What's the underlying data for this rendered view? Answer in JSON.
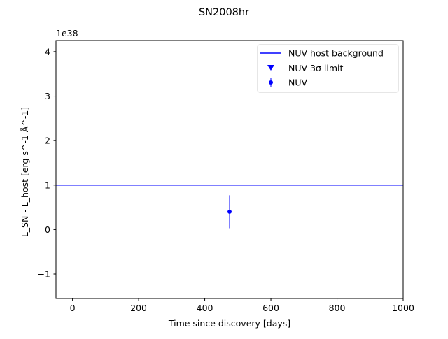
{
  "chart_data": {
    "type": "scatter",
    "title": "SN2008hr",
    "xlabel": "Time since discovery [days]",
    "ylabel": "L_SN - L_host [erg s^-1 Å^-1]",
    "y_offset_label": "1e38",
    "xlim": [
      -50,
      1000
    ],
    "ylim": [
      -1.55,
      4.25
    ],
    "xticks": [
      0,
      200,
      400,
      600,
      800,
      1000
    ],
    "xtick_labels": [
      "0",
      "200",
      "400",
      "600",
      "800",
      "1000"
    ],
    "yticks": [
      -1,
      0,
      1,
      2,
      3,
      4
    ],
    "ytick_labels": [
      "−1",
      "0",
      "1",
      "2",
      "3",
      "4"
    ],
    "grid": false,
    "legend_placement": "upper right",
    "series": [
      {
        "name": "NUV host background",
        "kind": "hline",
        "y": 1.0,
        "color": "#0000ff"
      },
      {
        "name": "NUV 3σ limit",
        "kind": "upper_limit",
        "points": [],
        "color": "#0000ff"
      },
      {
        "name": "NUV",
        "kind": "errorbar",
        "points": [
          {
            "x": 475,
            "y": 0.4,
            "yerr": 0.37
          }
        ],
        "color": "#0000ff"
      }
    ]
  }
}
